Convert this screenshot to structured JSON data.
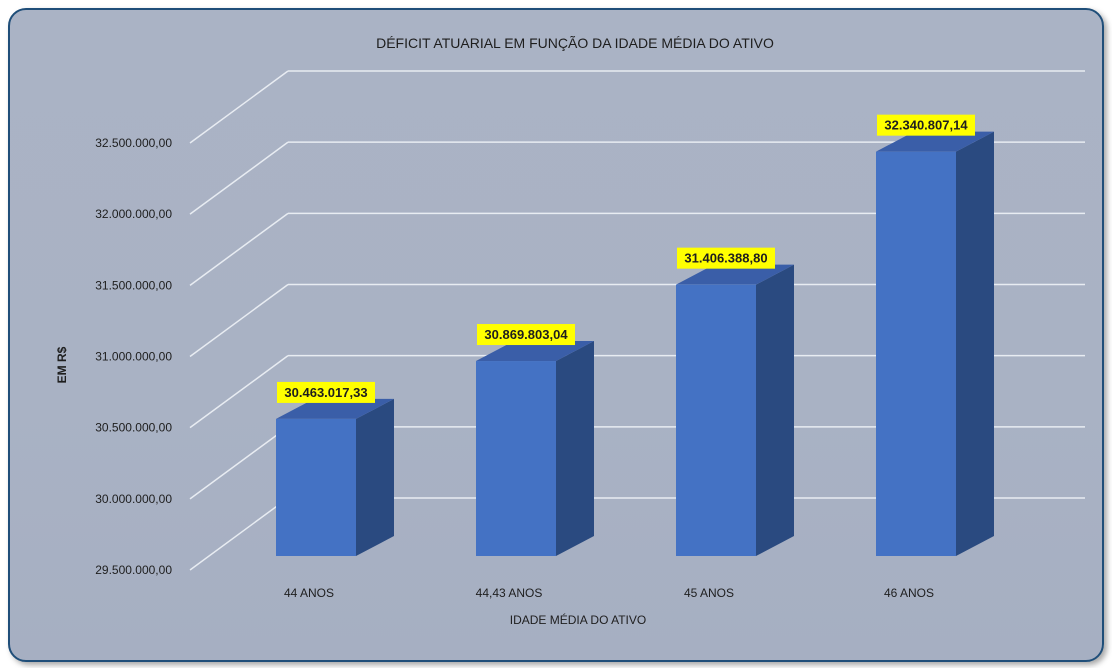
{
  "chart_data": {
    "type": "bar",
    "title": "DÉFICIT ATUARIAL EM FUNÇÃO DA IDADE MÉDIA DO ATIVO",
    "xlabel": "IDADE MÉDIA DO ATIVO",
    "ylabel": "EM R$",
    "categories": [
      "44 ANOS",
      "44,43 ANOS",
      "45 ANOS",
      "46 ANOS"
    ],
    "values": [
      30463017.33,
      30869803.04,
      31406388.8,
      32340807.14
    ],
    "value_labels": [
      "30.463.017,33",
      "30.869.803,04",
      "31.406.388,80",
      "32.340.807,14"
    ],
    "ylim": [
      29500000,
      32500000
    ],
    "yticks": [
      29500000,
      30000000,
      30500000,
      31000000,
      31500000,
      32000000,
      32500000
    ],
    "ytick_labels": [
      "29.500.000,00",
      "30.000.000,00",
      "30.500.000,00",
      "31.000.000,00",
      "31.500.000,00",
      "32.000.000,00",
      "32.500.000,00"
    ],
    "grid": true,
    "legend": "none",
    "colors": {
      "bar_front": "#4472c4",
      "bar_side": "#2a4a80",
      "bar_top": "#3a5ea8",
      "label_bg": "#ffff00",
      "gridline": "#e8ecf2",
      "frame_border": "#1f4e79"
    }
  }
}
